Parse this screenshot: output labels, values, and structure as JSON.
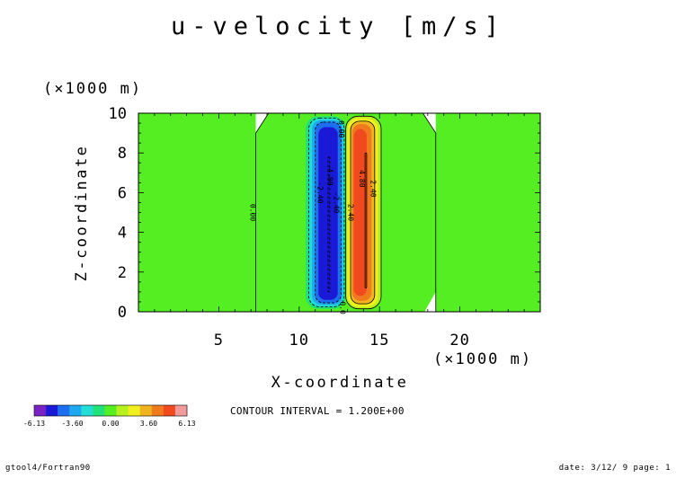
{
  "chart_data": {
    "type": "heatmap",
    "title": "u-velocity [m/s]",
    "xlabel": "X-coordinate",
    "ylabel": "Z-coordinate",
    "x_unit": "(×1000 m)",
    "y_unit": "(×1000 m)",
    "xlim": [
      0,
      25
    ],
    "ylim": [
      0,
      10
    ],
    "x_ticks": [
      5,
      10,
      15,
      20
    ],
    "y_ticks": [
      0,
      2,
      4,
      6,
      8,
      10
    ],
    "grid": false,
    "contour_interval_text": "CONTOUR INTERVAL = 1.200E+00",
    "contour_labels": [
      {
        "text": "0.00",
        "x": 7.1,
        "z": 5.0
      },
      {
        "text": "-2.40",
        "x": 11.3,
        "z": 6.0
      },
      {
        "text": "-4.80",
        "x": 11.9,
        "z": 6.9
      },
      {
        "text": "-2.40",
        "x": 12.3,
        "z": 5.5
      },
      {
        "text": "0.00",
        "x": 12.6,
        "z": 9.2
      },
      {
        "text": "2.40",
        "x": 13.2,
        "z": 5.0
      },
      {
        "text": "4.80",
        "x": 13.9,
        "z": 6.7
      },
      {
        "text": "2.40",
        "x": 14.6,
        "z": 6.2
      },
      {
        "text": "0.0",
        "x": 12.7,
        "z": 0.2
      }
    ],
    "field": {
      "background_value": 0.0,
      "negative_core": {
        "x_center": 11.9,
        "x_range": [
          10.5,
          12.9
        ],
        "z_range": [
          0.3,
          9.7
        ],
        "min_value": -6.13
      },
      "positive_core": {
        "x_center": 14.2,
        "x_range": [
          12.9,
          15.1
        ],
        "z_range": [
          0.3,
          9.7
        ],
        "max_value": 6.13
      }
    },
    "colorbar": {
      "colors": [
        "#7b22c4",
        "#1a1ad6",
        "#1e6ef0",
        "#1ea8f0",
        "#22ddd6",
        "#22e07a",
        "#55ee22",
        "#b8f01e",
        "#f0f01e",
        "#f0b41e",
        "#f07a1e",
        "#f04a1e",
        "#f09a9a"
      ],
      "tick_labels": [
        "-6.13",
        "-3.60",
        "0.00",
        "3.60",
        "6.13"
      ]
    }
  },
  "footer": {
    "left": "gtool4/Fortran90",
    "right": "date: 3/12/ 9 page: 1"
  }
}
